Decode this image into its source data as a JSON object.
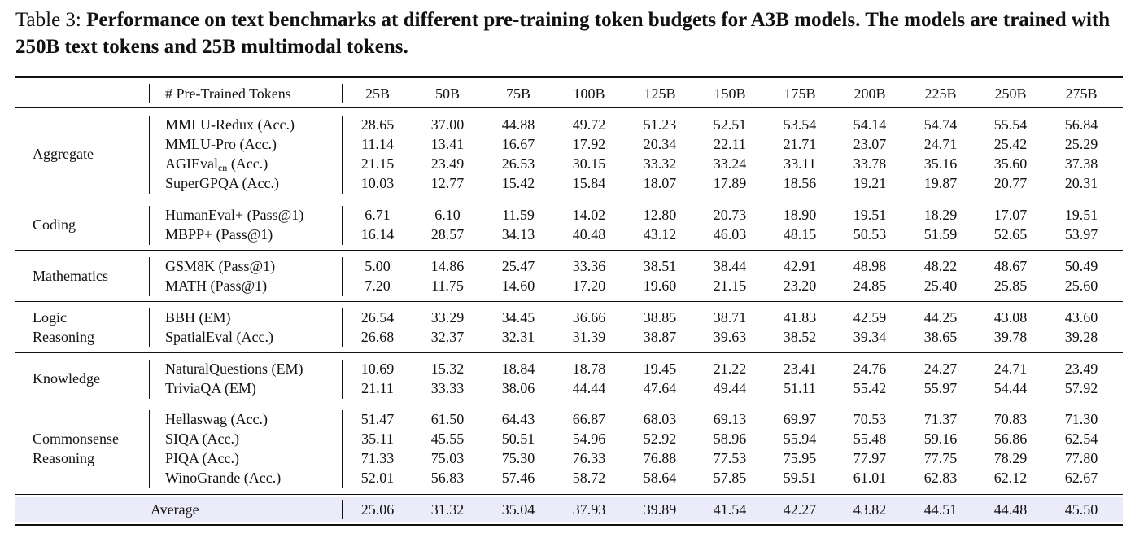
{
  "caption": {
    "label": "Table 3:",
    "title": "Performance on text benchmarks at different pre-training token budgets for A3B models. The models are trained with 250B text tokens and 25B multimodal tokens."
  },
  "header": {
    "metric_col": "# Pre-Trained Tokens",
    "budgets": [
      "25B",
      "50B",
      "75B",
      "100B",
      "125B",
      "150B",
      "175B",
      "200B",
      "225B",
      "250B",
      "275B"
    ]
  },
  "groups": [
    {
      "name": [
        "Aggregate"
      ],
      "rows": [
        {
          "metric": "MMLU-Redux (Acc.)",
          "values": [
            "28.65",
            "37.00",
            "44.88",
            "49.72",
            "51.23",
            "52.51",
            "53.54",
            "54.14",
            "54.74",
            "55.54",
            "56.84"
          ]
        },
        {
          "metric": "MMLU-Pro (Acc.)",
          "values": [
            "11.14",
            "13.41",
            "16.67",
            "17.92",
            "20.34",
            "22.11",
            "21.71",
            "23.07",
            "24.71",
            "25.42",
            "25.29"
          ]
        },
        {
          "metric": "AGIEval",
          "metric_sub": "en",
          "metric_suffix": " (Acc.)",
          "values": [
            "21.15",
            "23.49",
            "26.53",
            "30.15",
            "33.32",
            "33.24",
            "33.11",
            "33.78",
            "35.16",
            "35.60",
            "37.38"
          ]
        },
        {
          "metric": "SuperGPQA (Acc.)",
          "values": [
            "10.03",
            "12.77",
            "15.42",
            "15.84",
            "18.07",
            "17.89",
            "18.56",
            "19.21",
            "19.87",
            "20.77",
            "20.31"
          ]
        }
      ]
    },
    {
      "name": [
        "Coding"
      ],
      "rows": [
        {
          "metric": "HumanEval+ (Pass@1)",
          "values": [
            "6.71",
            "6.10",
            "11.59",
            "14.02",
            "12.80",
            "20.73",
            "18.90",
            "19.51",
            "18.29",
            "17.07",
            "19.51"
          ]
        },
        {
          "metric": "MBPP+ (Pass@1)",
          "values": [
            "16.14",
            "28.57",
            "34.13",
            "40.48",
            "43.12",
            "46.03",
            "48.15",
            "50.53",
            "51.59",
            "52.65",
            "53.97"
          ]
        }
      ]
    },
    {
      "name": [
        "Mathematics"
      ],
      "rows": [
        {
          "metric": "GSM8K (Pass@1)",
          "values": [
            "5.00",
            "14.86",
            "25.47",
            "33.36",
            "38.51",
            "38.44",
            "42.91",
            "48.98",
            "48.22",
            "48.67",
            "50.49"
          ]
        },
        {
          "metric": "MATH (Pass@1)",
          "values": [
            "7.20",
            "11.75",
            "14.60",
            "17.20",
            "19.60",
            "21.15",
            "23.20",
            "24.85",
            "25.40",
            "25.85",
            "25.60"
          ]
        }
      ]
    },
    {
      "name": [
        "Logic",
        "Reasoning"
      ],
      "rows": [
        {
          "metric": "BBH (EM)",
          "values": [
            "26.54",
            "33.29",
            "34.45",
            "36.66",
            "38.85",
            "38.71",
            "41.83",
            "42.59",
            "44.25",
            "43.08",
            "43.60"
          ]
        },
        {
          "metric": "SpatialEval (Acc.)",
          "values": [
            "26.68",
            "32.37",
            "32.31",
            "31.39",
            "38.87",
            "39.63",
            "38.52",
            "39.34",
            "38.65",
            "39.78",
            "39.28"
          ]
        }
      ]
    },
    {
      "name": [
        "Knowledge"
      ],
      "rows": [
        {
          "metric": "NaturalQuestions (EM)",
          "values": [
            "10.69",
            "15.32",
            "18.84",
            "18.78",
            "19.45",
            "21.22",
            "23.41",
            "24.76",
            "24.27",
            "24.71",
            "23.49"
          ]
        },
        {
          "metric": "TriviaQA (EM)",
          "values": [
            "21.11",
            "33.33",
            "38.06",
            "44.44",
            "47.64",
            "49.44",
            "51.11",
            "55.42",
            "55.97",
            "54.44",
            "57.92"
          ]
        }
      ]
    },
    {
      "name": [
        "Commonsense",
        "Reasoning"
      ],
      "rows": [
        {
          "metric": "Hellaswag (Acc.)",
          "values": [
            "51.47",
            "61.50",
            "64.43",
            "66.87",
            "68.03",
            "69.13",
            "69.97",
            "70.53",
            "71.37",
            "70.83",
            "71.30"
          ]
        },
        {
          "metric": "SIQA (Acc.)",
          "values": [
            "35.11",
            "45.55",
            "50.51",
            "54.96",
            "52.92",
            "58.96",
            "55.94",
            "55.48",
            "59.16",
            "56.86",
            "62.54"
          ]
        },
        {
          "metric": "PIQA (Acc.)",
          "values": [
            "71.33",
            "75.03",
            "75.30",
            "76.33",
            "76.88",
            "77.53",
            "75.95",
            "77.97",
            "77.75",
            "78.29",
            "77.80"
          ]
        },
        {
          "metric": "WinoGrande (Acc.)",
          "values": [
            "52.01",
            "56.83",
            "57.46",
            "58.72",
            "58.64",
            "57.85",
            "59.51",
            "61.01",
            "62.83",
            "62.12",
            "62.67"
          ]
        }
      ]
    }
  ],
  "average": {
    "label": "Average",
    "values": [
      "25.06",
      "31.32",
      "35.04",
      "37.93",
      "39.89",
      "41.54",
      "42.27",
      "43.82",
      "44.51",
      "44.48",
      "45.50"
    ]
  }
}
